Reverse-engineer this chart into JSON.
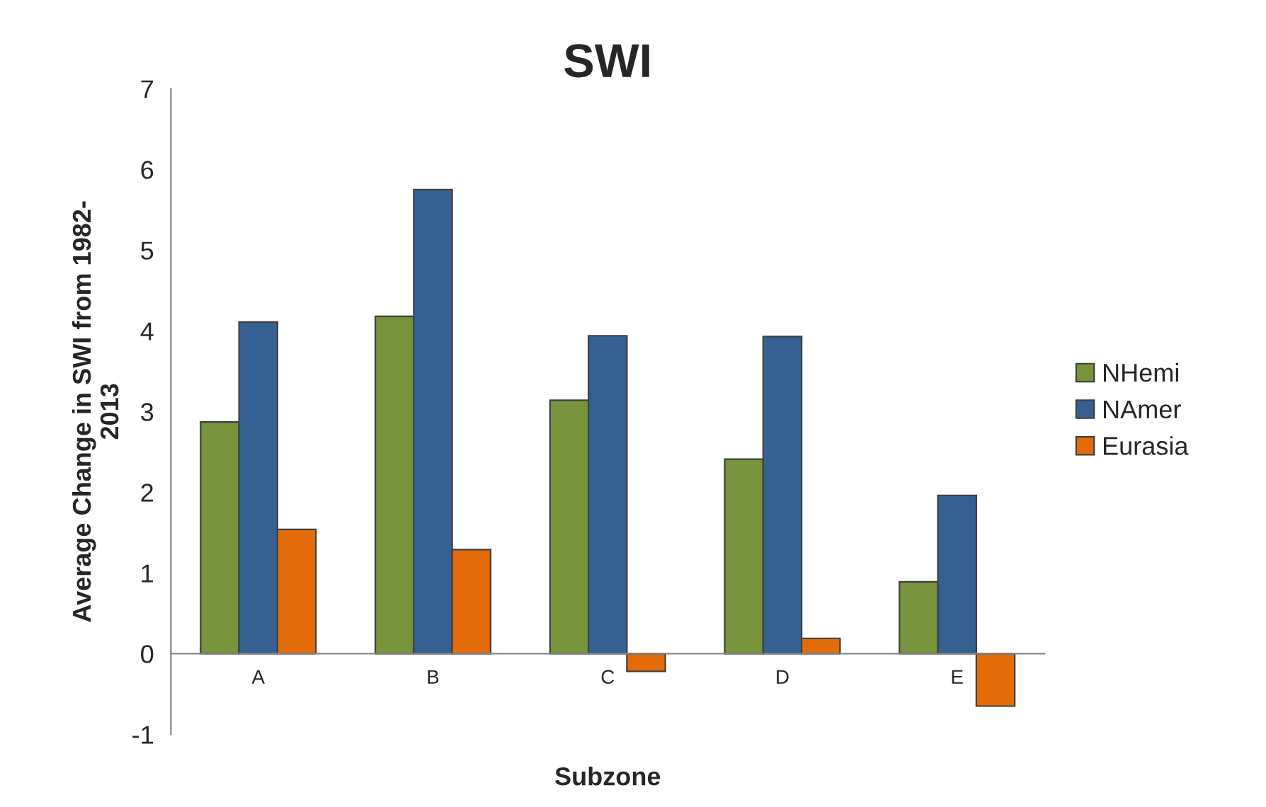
{
  "chart_data": {
    "type": "bar",
    "title": "SWI",
    "xlabel": "Subzone",
    "ylabel": "Average Change in SWI from 1982-\n2013",
    "categories": [
      "A",
      "B",
      "C",
      "D",
      "E"
    ],
    "series": [
      {
        "name": "NHemi",
        "color": "#77933c",
        "values": [
          2.87,
          4.18,
          3.14,
          2.41,
          0.89
        ]
      },
      {
        "name": "NAmer",
        "color": "#376092",
        "values": [
          4.11,
          5.75,
          3.94,
          3.93,
          1.96
        ]
      },
      {
        "name": "Eurasia",
        "color": "#e36c09",
        "values": [
          1.54,
          1.29,
          -0.22,
          0.19,
          -0.65
        ]
      }
    ],
    "ylim": [
      -1,
      7
    ],
    "yticks": [
      -1,
      0,
      1,
      2,
      3,
      4,
      5,
      6,
      7
    ],
    "grid": false,
    "legend": "right"
  }
}
